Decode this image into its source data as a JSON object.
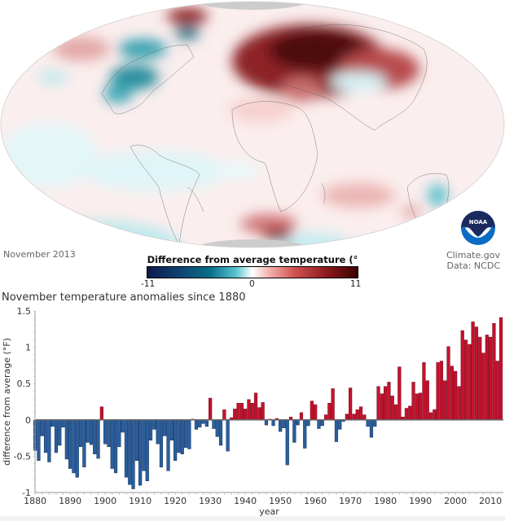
{
  "map": {
    "date": "November 2013",
    "legend_title": "Difference from average temperature (° F)",
    "legend_min": "-11",
    "legend_mid": "0",
    "legend_max": "11",
    "credit_line1": "Climate.gov",
    "credit_line2": "Data: NCDC",
    "logo_text": "NOAA",
    "colors": {
      "cold": "#0a6f8a",
      "warm": "#8e1a1f",
      "pole": "#cccccc"
    }
  },
  "chart_data": {
    "type": "bar",
    "title": "November temperature anomalies since 1880",
    "xlabel": "year",
    "ylabel": "difference from average (°F)",
    "ylim": [
      -1,
      1.5
    ],
    "xlim": [
      1880,
      2013
    ],
    "yticks": [
      "1.5",
      "1",
      "0.5",
      "0",
      "-0.5",
      "-1"
    ],
    "ytick_values": [
      1.5,
      1,
      0.5,
      0,
      -0.5,
      -1
    ],
    "xticks": [
      "1880",
      "1890",
      "1900",
      "1910",
      "1920",
      "1930",
      "1940",
      "1950",
      "1960",
      "1970",
      "1980",
      "1990",
      "2000",
      "2010"
    ],
    "xtick_values": [
      1880,
      1890,
      1900,
      1910,
      1920,
      1930,
      1940,
      1950,
      1960,
      1970,
      1980,
      1990,
      2000,
      2010
    ],
    "colors": {
      "positive": "#c8102e",
      "negative": "#2a5f9e"
    },
    "start_year": 1880,
    "values": [
      -0.42,
      -0.56,
      -0.22,
      -0.45,
      -0.58,
      -0.09,
      -0.45,
      -0.35,
      -0.1,
      -0.54,
      -0.67,
      -0.73,
      -0.79,
      -0.37,
      -0.65,
      -0.31,
      -0.34,
      -0.47,
      -0.53,
      0.18,
      -0.33,
      -0.37,
      -0.67,
      -0.73,
      -0.37,
      -0.17,
      -0.79,
      -0.89,
      -0.95,
      -0.56,
      -0.9,
      -0.7,
      -0.84,
      -0.28,
      -0.13,
      -0.33,
      -0.65,
      -0.22,
      -0.7,
      -0.28,
      -0.56,
      -0.45,
      -0.47,
      -0.38,
      -0.4,
      0.01,
      -0.13,
      -0.1,
      -0.05,
      -0.09,
      0.3,
      -0.12,
      -0.23,
      -0.35,
      0.14,
      -0.43,
      0.03,
      0.15,
      0.23,
      0.23,
      0.15,
      0.28,
      0.23,
      0.37,
      0.17,
      0.24,
      -0.07,
      0.01,
      -0.08,
      0.02,
      -0.16,
      -0.11,
      -0.62,
      0.04,
      -0.31,
      -0.07,
      0.1,
      -0.39,
      -0.08,
      0.26,
      0.21,
      -0.12,
      -0.08,
      0.07,
      0.23,
      0.43,
      -0.3,
      -0.13,
      -0.02,
      0.08,
      0.44,
      0.08,
      0.14,
      0.18,
      0.07,
      -0.09,
      -0.24,
      -0.09,
      0.46,
      0.36,
      0.46,
      0.52,
      0.33,
      0.21,
      0.73,
      0.04,
      0.16,
      0.19,
      0.52,
      0.36,
      0.37,
      0.79,
      0.54,
      0.1,
      0.14,
      0.79,
      0.81,
      0.54,
      1.01,
      0.74,
      0.67,
      0.46,
      1.23,
      1.1,
      1.04,
      1.35,
      1.28,
      1.14,
      0.92,
      1.17,
      1.14,
      1.33,
      0.81,
      1.41
    ]
  }
}
